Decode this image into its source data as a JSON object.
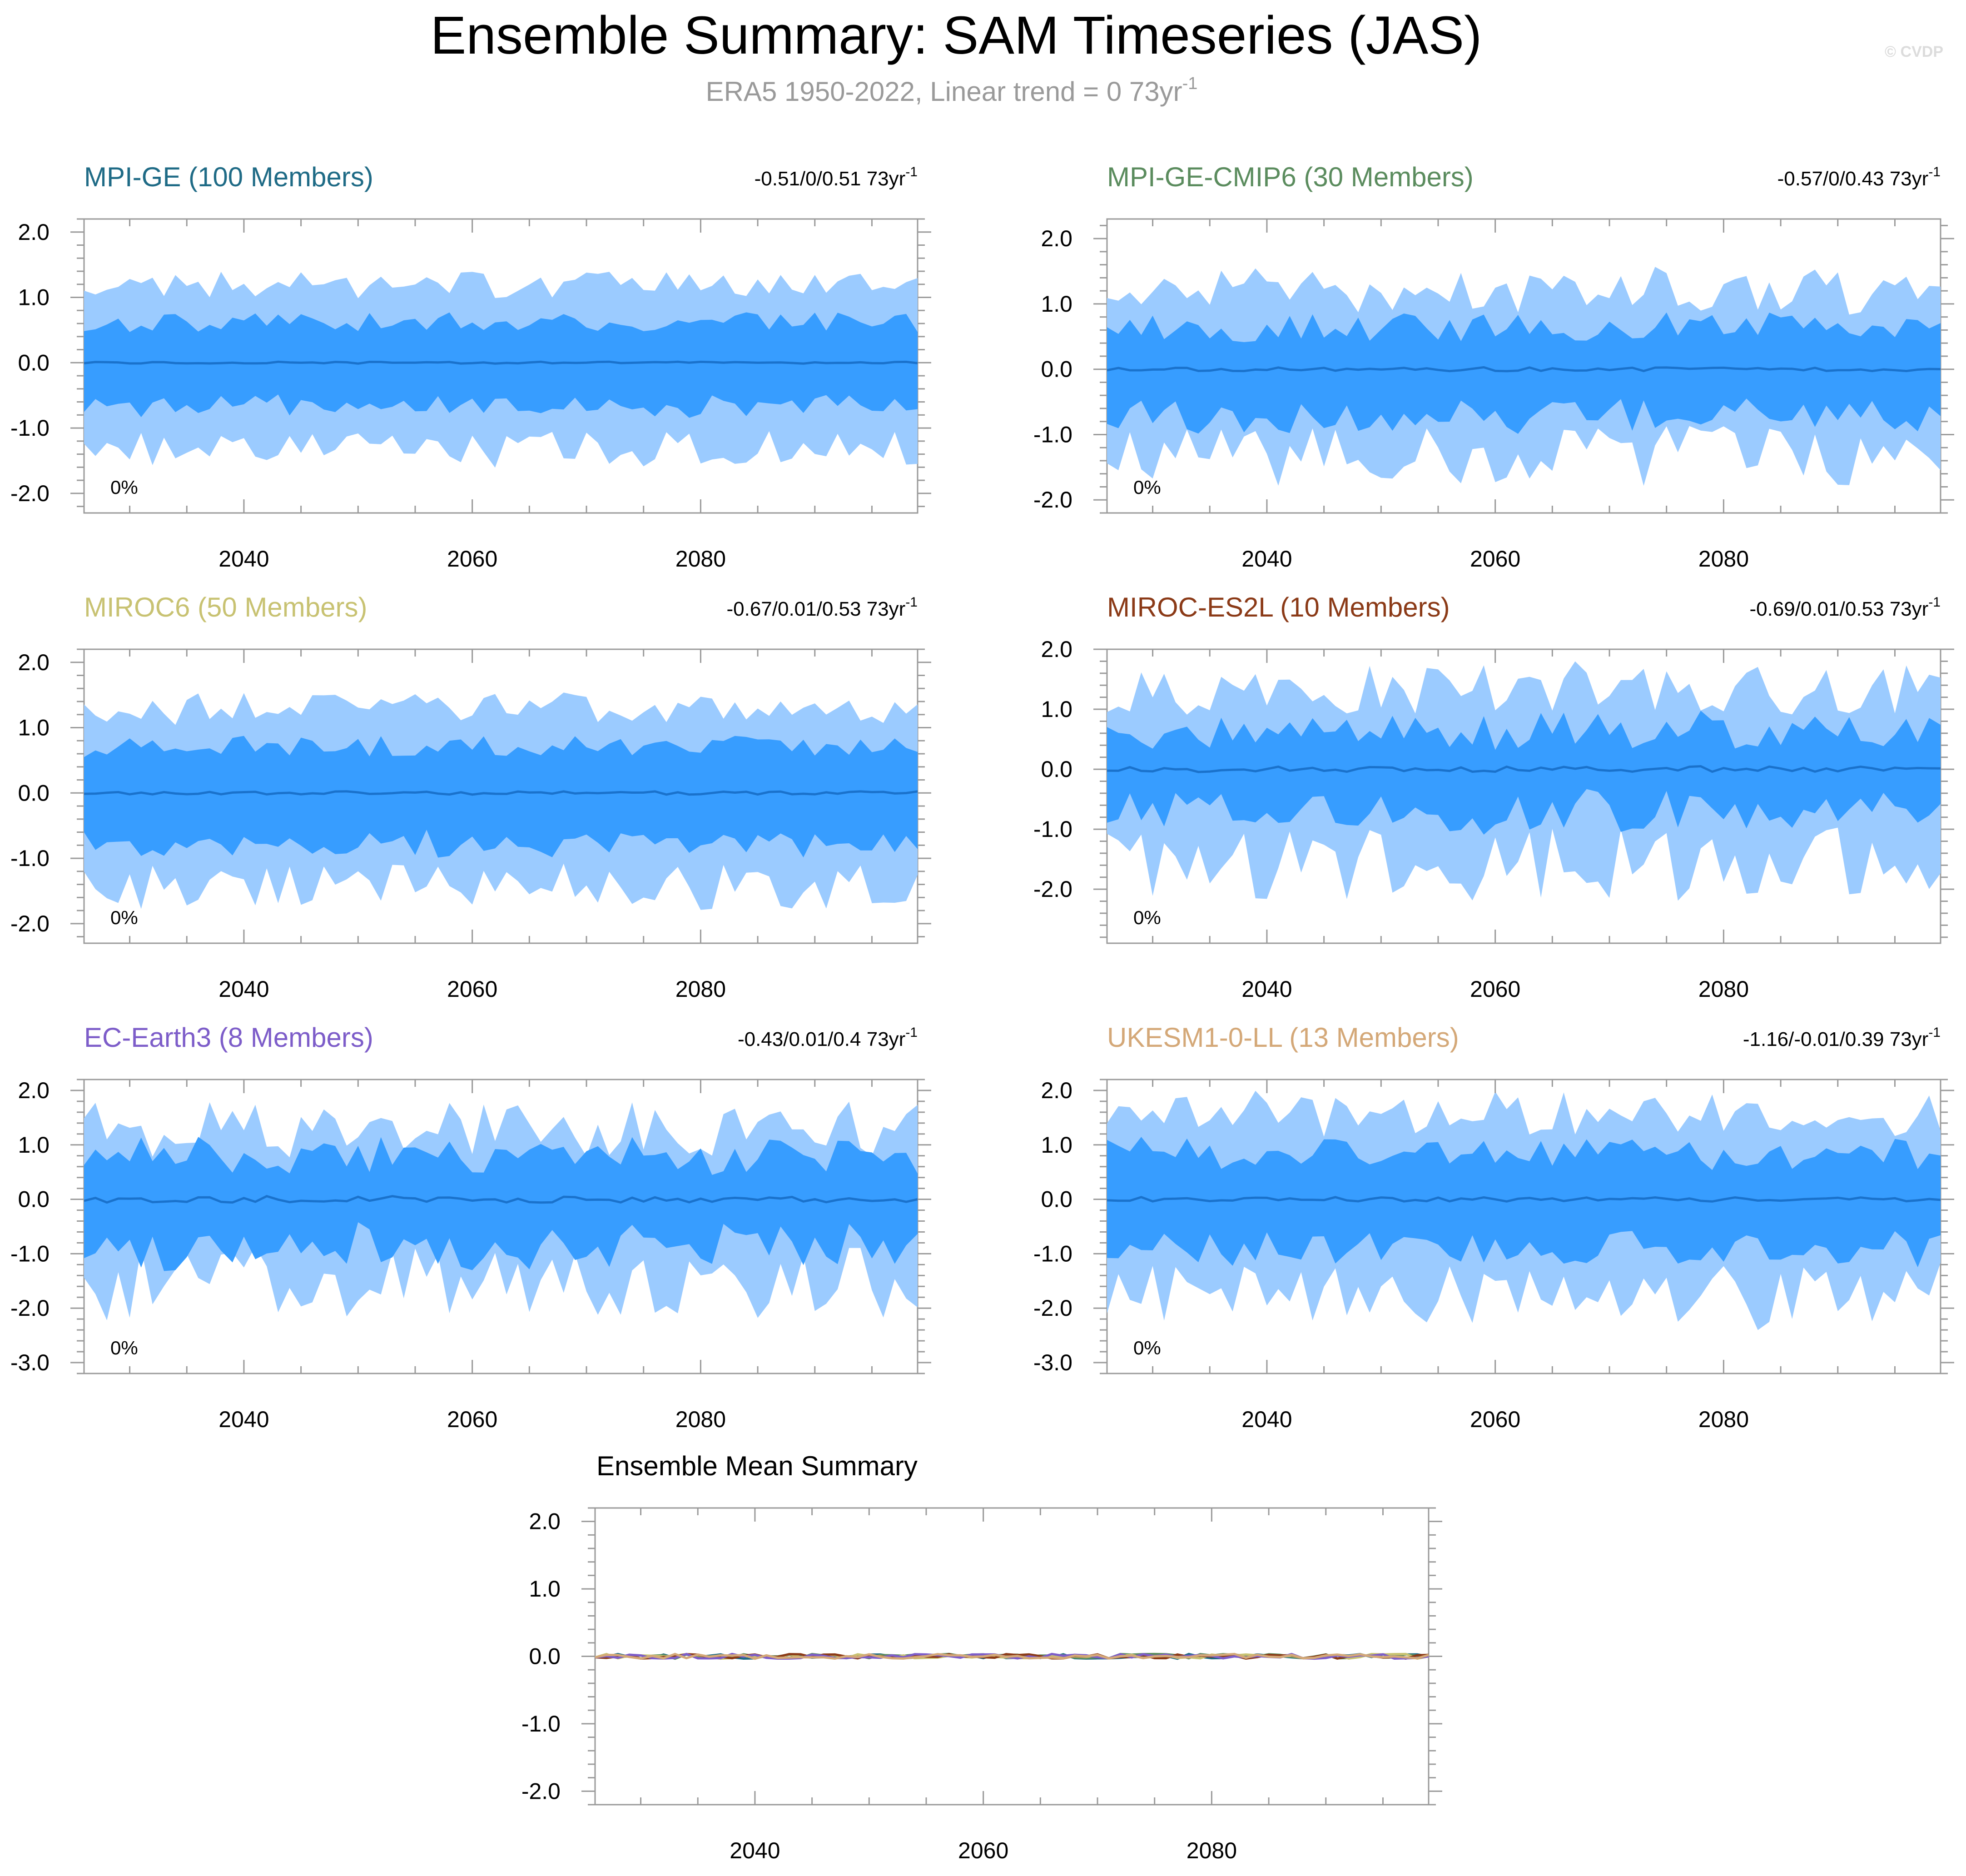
{
  "page": {
    "title": "Ensemble Summary: SAM Timeseries (JAS)",
    "subtitle_main": "ERA5 1950-2022, Linear trend = 0 73yr",
    "subtitle_exp": "-1",
    "watermark": "© CVDP"
  },
  "chart_data": [
    {
      "type": "area",
      "title": "MPI-GE (100 Members)",
      "title_color": "#1f6b86",
      "trend_text": "-0.51/0/0.51 73yr",
      "trend_exp": "-1",
      "percent_label": "0%",
      "x_range": [
        2026,
        2099
      ],
      "x_ticks": [
        2040,
        2060,
        2080
      ],
      "y_range": [
        -2.3,
        2.2
      ],
      "y_ticks": [
        2.0,
        1.0,
        0.0,
        -1.0,
        -2.0
      ],
      "y_tick_labels": [
        "2.0",
        "1.0",
        "0.0",
        "-1.0",
        "-2.0"
      ],
      "series": [
        {
          "name": "outer spread (min-max)",
          "color": "#9bcbff"
        },
        {
          "name": "inner spread (10-90%)",
          "color": "#379dff"
        },
        {
          "name": "ensemble mean",
          "color": "#1a72cc"
        }
      ],
      "seed": 11,
      "outer_mag": 1.2,
      "outer_var": 0.2,
      "inner_mag": 0.62,
      "inner_var": 0.15,
      "mean_var": 0.015
    },
    {
      "type": "area",
      "title": "MPI-GE-CMIP6 (30 Members)",
      "title_color": "#5b8c5e",
      "trend_text": "-0.57/0/0.43 73yr",
      "trend_exp": "-1",
      "percent_label": "0%",
      "x_range": [
        2026,
        2099
      ],
      "x_ticks": [
        2040,
        2060,
        2080
      ],
      "y_range": [
        -2.2,
        2.3
      ],
      "y_ticks": [
        2.0,
        1.0,
        0.0,
        -1.0,
        -2.0
      ],
      "y_tick_labels": [
        "2.0",
        "1.0",
        "0.0",
        "-1.0",
        "-2.0"
      ],
      "series": [
        {
          "name": "outer spread (min-max)",
          "color": "#9bcbff"
        },
        {
          "name": "inner spread (10-90%)",
          "color": "#379dff"
        },
        {
          "name": "ensemble mean",
          "color": "#1a72cc"
        }
      ],
      "seed": 23,
      "outer_mag": 1.2,
      "outer_var": 0.35,
      "inner_mag": 0.65,
      "inner_var": 0.22,
      "mean_var": 0.03
    },
    {
      "type": "area",
      "title": "MIROC6 (50 Members)",
      "title_color": "#c8c272",
      "trend_text": "-0.67/0.01/0.53 73yr",
      "trend_exp": "-1",
      "percent_label": "0%",
      "x_range": [
        2026,
        2099
      ],
      "x_ticks": [
        2040,
        2060,
        2080
      ],
      "y_range": [
        -2.3,
        2.2
      ],
      "y_ticks": [
        2.0,
        1.0,
        0.0,
        -1.0,
        -2.0
      ],
      "y_tick_labels": [
        "2.0",
        "1.0",
        "0.0",
        "-1.0",
        "-2.0"
      ],
      "series": [
        {
          "name": "outer spread (min-max)",
          "color": "#9bcbff"
        },
        {
          "name": "inner spread (10-90%)",
          "color": "#379dff"
        },
        {
          "name": "ensemble mean",
          "color": "#1a72cc"
        }
      ],
      "seed": 37,
      "outer_mag": 1.3,
      "outer_var": 0.25,
      "inner_mag": 0.72,
      "inner_var": 0.17,
      "mean_var": 0.025
    },
    {
      "type": "area",
      "title": "MIROC-ES2L (10 Members)",
      "title_color": "#8b3a17",
      "trend_text": "-0.69/0.01/0.53 73yr",
      "trend_exp": "-1",
      "percent_label": "0%",
      "x_range": [
        2026,
        2099
      ],
      "x_ticks": [
        2040,
        2060,
        2080
      ],
      "y_range": [
        -2.9,
        2.0
      ],
      "y_ticks": [
        2.0,
        1.0,
        0.0,
        -1.0,
        -2.0
      ],
      "y_tick_labels": [
        "2.0",
        "1.0",
        "0.0",
        "-1.0",
        "-2.0"
      ],
      "series": [
        {
          "name": "outer spread (min-max)",
          "color": "#9bcbff"
        },
        {
          "name": "inner spread (10-90%)",
          "color": "#379dff"
        },
        {
          "name": "ensemble mean",
          "color": "#1a72cc"
        }
      ],
      "seed": 53,
      "outer_mag": 1.35,
      "outer_var": 0.45,
      "inner_mag": 0.65,
      "inner_var": 0.3,
      "mean_var": 0.05
    },
    {
      "type": "area",
      "title": "EC-Earth3 (8 Members)",
      "title_color": "#7d5dc9",
      "trend_text": "-0.43/0.01/0.4 73yr",
      "trend_exp": "-1",
      "percent_label": "0%",
      "x_range": [
        2026,
        2099
      ],
      "x_ticks": [
        2040,
        2060,
        2080
      ],
      "y_range": [
        -3.2,
        2.2
      ],
      "y_ticks": [
        2.0,
        1.0,
        0.0,
        -1.0,
        -2.0,
        -3.0
      ],
      "y_tick_labels": [
        "2.0",
        "1.0",
        "0.0",
        "-1.0",
        "-2.0",
        "-3.0"
      ],
      "series": [
        {
          "name": "outer spread (min-max)",
          "color": "#9bcbff"
        },
        {
          "name": "inner spread (10-90%)",
          "color": "#379dff"
        },
        {
          "name": "ensemble mean",
          "color": "#1a72cc"
        }
      ],
      "seed": 71,
      "outer_mag": 1.3,
      "outer_var": 0.5,
      "inner_mag": 0.8,
      "inner_var": 0.35,
      "mean_var": 0.06
    },
    {
      "type": "area",
      "title": "UKESM1-0-LL (13 Members)",
      "title_color": "#d4a878",
      "trend_text": "-1.16/-0.01/0.39 73yr",
      "trend_exp": "-1",
      "percent_label": "0%",
      "x_range": [
        2026,
        2099
      ],
      "x_ticks": [
        2040,
        2060,
        2080
      ],
      "y_range": [
        -3.2,
        2.2
      ],
      "y_ticks": [
        2.0,
        1.0,
        0.0,
        -1.0,
        -2.0,
        -3.0
      ],
      "y_tick_labels": [
        "2.0",
        "1.0",
        "0.0",
        "-1.0",
        "-2.0",
        "-3.0"
      ],
      "series": [
        {
          "name": "outer spread (min-max)",
          "color": "#9bcbff"
        },
        {
          "name": "inner spread (10-90%)",
          "color": "#379dff"
        },
        {
          "name": "ensemble mean",
          "color": "#1a72cc"
        }
      ],
      "seed": 89,
      "outer_mag": 1.55,
      "outer_var": 0.45,
      "inner_mag": 0.85,
      "inner_var": 0.28,
      "mean_var": 0.04
    },
    {
      "type": "line",
      "title": "Ensemble Mean Summary",
      "x_range": [
        2026,
        2099
      ],
      "x_ticks": [
        2040,
        2060,
        2080
      ],
      "y_range": [
        -2.2,
        2.2
      ],
      "y_ticks": [
        2.0,
        1.0,
        0.0,
        -1.0,
        -2.0
      ],
      "y_tick_labels": [
        "2.0",
        "1.0",
        "0.0",
        "-1.0",
        "-2.0"
      ],
      "series": [
        {
          "name": "MPI-GE",
          "color": "#1f6b86",
          "seed": 101
        },
        {
          "name": "MPI-GE-CMIP6",
          "color": "#5b8c5e",
          "seed": 103
        },
        {
          "name": "MIROC6",
          "color": "#c8c272",
          "seed": 107
        },
        {
          "name": "MIROC-ES2L",
          "color": "#8b3a17",
          "seed": 109
        },
        {
          "name": "EC-Earth3",
          "color": "#7d5dc9",
          "seed": 113
        },
        {
          "name": "UKESM1-0-LL",
          "color": "#d4a878",
          "seed": 127
        }
      ],
      "mean_var": 0.035
    }
  ]
}
